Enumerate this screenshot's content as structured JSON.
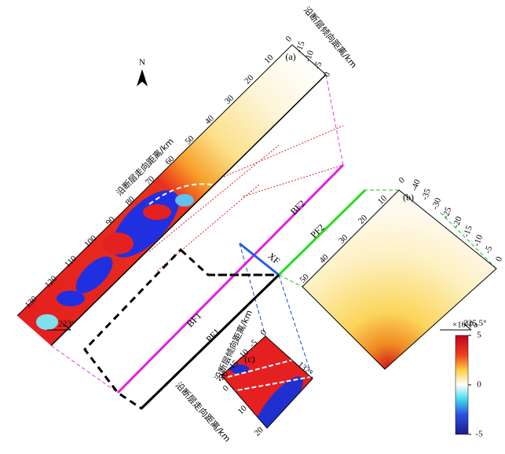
{
  "north": "N",
  "panel_a": {
    "label": "(a)",
    "strike_axis_label": "沿断层走向距离/km",
    "dip_axis_label": "沿断层倾向距离/km",
    "strike_ticks": [
      0,
      10,
      20,
      30,
      40,
      50,
      60,
      70,
      80,
      90,
      100,
      110,
      120,
      130
    ],
    "dip_ticks": [
      -15,
      -10,
      -5,
      0
    ],
    "angle": "223°"
  },
  "panel_b": {
    "label": "(b)",
    "strike_ticks": [
      0,
      10,
      20,
      30,
      40,
      50
    ],
    "dip_ticks": [
      -40,
      -35,
      -30,
      -25,
      -20,
      -15,
      -10,
      -5,
      0
    ],
    "angle": "225.5°"
  },
  "panel_c": {
    "label": "(c)",
    "strike_axis_label": "沿断层走向距离/km",
    "dip_axis_label": "沿断层倾向距离/km",
    "strike_ticks": [
      0,
      10,
      20
    ],
    "dip_ticks": [
      0,
      -5,
      -10,
      -15,
      -20
    ],
    "angle": "132°"
  },
  "faults": {
    "bf2": "BF2",
    "pf2": "PF2",
    "xf": "XF",
    "bf1": "BF1",
    "pf1": "PF1"
  },
  "colorbar": {
    "unit": "×10⁵Pa",
    "ticks": [
      5,
      0,
      -5
    ]
  }
}
